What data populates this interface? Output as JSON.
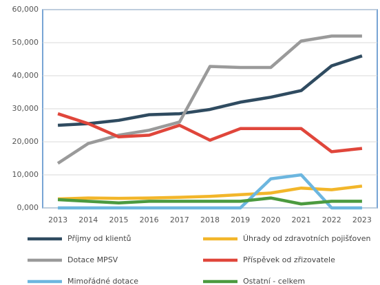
{
  "chart_data": {
    "type": "line",
    "categories": [
      "2013",
      "2014",
      "2015",
      "2016",
      "2017",
      "2018",
      "2019",
      "2020",
      "2021",
      "2022",
      "2023"
    ],
    "series": [
      {
        "name": "Příjmy od klientů",
        "color": "#2f4b60",
        "values": [
          25000,
          25500,
          26500,
          28200,
          28500,
          29800,
          32000,
          33500,
          35500,
          43000,
          46000
        ]
      },
      {
        "name": "Úhrady od zdravotních pojišťoven",
        "color": "#f2b62a",
        "values": [
          2700,
          3000,
          2900,
          3000,
          3200,
          3500,
          4000,
          4500,
          6000,
          5500,
          6600
        ]
      },
      {
        "name": "Dotace MPSV",
        "color": "#9a9a9a",
        "values": [
          13500,
          19500,
          22000,
          23500,
          26000,
          42800,
          42500,
          42500,
          50500,
          52000,
          52000
        ]
      },
      {
        "name": "Příspěvek od zřizovatele",
        "color": "#e0463b",
        "values": [
          28500,
          25500,
          21500,
          22000,
          25000,
          20500,
          24000,
          24000,
          24000,
          17000,
          18000
        ]
      },
      {
        "name": "Mimořádné dotace",
        "color": "#6cb6df",
        "values": [
          0,
          0,
          0,
          0,
          0,
          0,
          0,
          8800,
          10000,
          0,
          0
        ]
      },
      {
        "name": "Ostatní - celkem",
        "color": "#4b9a3f",
        "values": [
          2500,
          2000,
          1500,
          2000,
          2000,
          2000,
          2000,
          3000,
          1200,
          2000,
          2000
        ]
      }
    ],
    "ylim": [
      0,
      60000
    ],
    "yticks": [
      {
        "value": 0,
        "label": "0,000"
      },
      {
        "value": 10000,
        "label": "10,000"
      },
      {
        "value": 20000,
        "label": "20,000"
      },
      {
        "value": 30000,
        "label": "30,000"
      },
      {
        "value": 40000,
        "label": "40,000"
      },
      {
        "value": 50000,
        "label": "50,000"
      },
      {
        "value": 60000,
        "label": "60,000"
      }
    ],
    "grid": true
  }
}
